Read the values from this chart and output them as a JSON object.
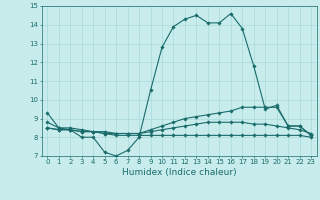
{
  "xlabel": "Humidex (Indice chaleur)",
  "bg_color": "#c8ecec",
  "line_color": "#1a6b6b",
  "grid_color": "#a8d8d8",
  "xlim": [
    -0.5,
    23.5
  ],
  "ylim": [
    7,
    15
  ],
  "yticks": [
    7,
    8,
    9,
    10,
    11,
    12,
    13,
    14,
    15
  ],
  "xticks": [
    0,
    1,
    2,
    3,
    4,
    5,
    6,
    7,
    8,
    9,
    10,
    11,
    12,
    13,
    14,
    15,
    16,
    17,
    18,
    19,
    20,
    21,
    22,
    23
  ],
  "series": [
    {
      "x": [
        0,
        1,
        2,
        3,
        4,
        5,
        6,
        7,
        8,
        9,
        10,
        11,
        12,
        13,
        14,
        15,
        16,
        17,
        18,
        19,
        20,
        21,
        22,
        23
      ],
      "y": [
        9.3,
        8.5,
        8.4,
        8.0,
        8.0,
        7.2,
        7.0,
        7.3,
        8.0,
        10.5,
        12.8,
        13.9,
        14.3,
        14.5,
        14.1,
        14.1,
        14.6,
        13.8,
        11.8,
        9.5,
        9.7,
        8.6,
        8.6,
        8.1
      ]
    },
    {
      "x": [
        0,
        1,
        2,
        3,
        4,
        5,
        6,
        7,
        8,
        9,
        10,
        11,
        12,
        13,
        14,
        15,
        16,
        17,
        18,
        19,
        20,
        21,
        22,
        23
      ],
      "y": [
        8.5,
        8.4,
        8.4,
        8.3,
        8.3,
        8.2,
        8.2,
        8.2,
        8.2,
        8.4,
        8.6,
        8.8,
        9.0,
        9.1,
        9.2,
        9.3,
        9.4,
        9.6,
        9.6,
        9.6,
        9.6,
        8.6,
        8.6,
        8.1
      ]
    },
    {
      "x": [
        0,
        1,
        2,
        3,
        4,
        5,
        6,
        7,
        8,
        9,
        10,
        11,
        12,
        13,
        14,
        15,
        16,
        17,
        18,
        19,
        20,
        21,
        22,
        23
      ],
      "y": [
        8.5,
        8.4,
        8.4,
        8.3,
        8.3,
        8.2,
        8.1,
        8.1,
        8.1,
        8.1,
        8.1,
        8.1,
        8.1,
        8.1,
        8.1,
        8.1,
        8.1,
        8.1,
        8.1,
        8.1,
        8.1,
        8.1,
        8.1,
        8.0
      ]
    },
    {
      "x": [
        0,
        1,
        2,
        3,
        4,
        5,
        6,
        7,
        8,
        9,
        10,
        11,
        12,
        13,
        14,
        15,
        16,
        17,
        18,
        19,
        20,
        21,
        22,
        23
      ],
      "y": [
        8.8,
        8.5,
        8.5,
        8.4,
        8.3,
        8.3,
        8.2,
        8.2,
        8.2,
        8.3,
        8.4,
        8.5,
        8.6,
        8.7,
        8.8,
        8.8,
        8.8,
        8.8,
        8.7,
        8.7,
        8.6,
        8.5,
        8.4,
        8.2
      ]
    }
  ]
}
